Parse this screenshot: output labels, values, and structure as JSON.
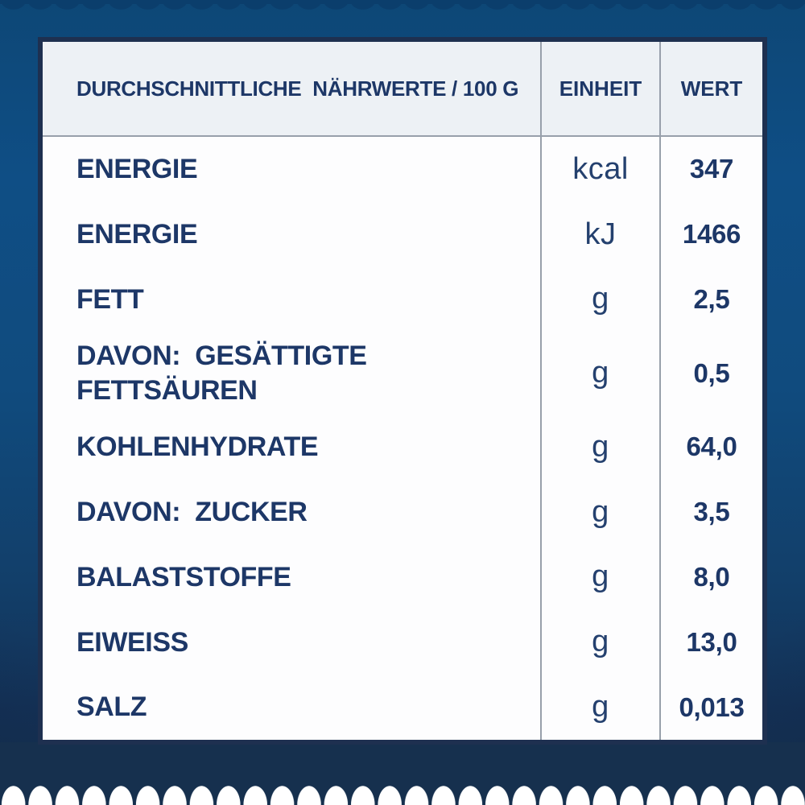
{
  "colors": {
    "background_blue_top": "#0f4e85",
    "background_navy_bottom": "#16304e",
    "table_border_navy": "#1e3050",
    "header_background": "#edf1f5",
    "divider_gray": "#98a0ab",
    "text_navy": "#1d3767",
    "table_background": "#fdfdfe",
    "scallop_white": "#ffffff"
  },
  "table": {
    "header": {
      "col1": "DURCHSCHNITTLICHE  NÄHRWERTE / 100 G",
      "col2": "EINHEIT",
      "col3": "WERT"
    },
    "rows": [
      {
        "label": "ENERGIE",
        "unit": "kcal",
        "value": "347"
      },
      {
        "label": "ENERGIE",
        "unit": "kJ",
        "value": "1466"
      },
      {
        "label": "FETT",
        "unit": "g",
        "value": "2,5"
      },
      {
        "label": "DAVON:  GESÄTTIGTE\nFETTSÄUREN",
        "unit": "g",
        "value": "0,5",
        "tall": true
      },
      {
        "label": "KOHLENHYDRATE",
        "unit": "g",
        "value": "64,0"
      },
      {
        "label": "DAVON:  ZUCKER",
        "unit": "g",
        "value": "3,5"
      },
      {
        "label": "BALASTSTOFFE",
        "unit": "g",
        "value": "8,0"
      },
      {
        "label": "EIWEISS",
        "unit": "g",
        "value": "13,0"
      },
      {
        "label": "SALZ",
        "unit": "g",
        "value": "0,013"
      }
    ]
  }
}
